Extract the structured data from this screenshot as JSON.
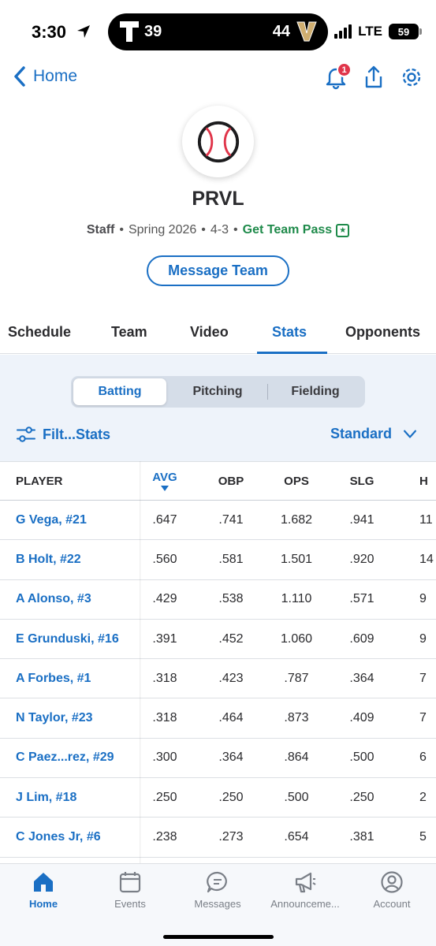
{
  "status_bar": {
    "time": "3:30",
    "score_left": "39",
    "score_right": "44",
    "network": "LTE",
    "battery": "59"
  },
  "nav": {
    "back_label": "Home",
    "notification_count": "1"
  },
  "team": {
    "name": "PRVL",
    "role": "Staff",
    "season": "Spring 2026",
    "record": "4-3",
    "pass_label": "Get Team Pass",
    "message_button": "Message Team"
  },
  "tabs": [
    "Schedule",
    "Team",
    "Video",
    "Stats",
    "Opponents"
  ],
  "active_tab": "Stats",
  "segments": [
    "Batting",
    "Pitching",
    "Fielding"
  ],
  "active_segment": "Batting",
  "filter_label": "Filt...Stats",
  "view_label": "Standard",
  "table": {
    "headers": [
      "PLAYER",
      "AVG",
      "OBP",
      "OPS",
      "SLG",
      "H"
    ],
    "rows": [
      [
        "G Vega, #21",
        ".647",
        ".741",
        "1.682",
        ".941",
        "11"
      ],
      [
        "B Holt, #22",
        ".560",
        ".581",
        "1.501",
        ".920",
        "14"
      ],
      [
        "A Alonso, #3",
        ".429",
        ".538",
        "1.110",
        ".571",
        "9"
      ],
      [
        "E Grunduski, #16",
        ".391",
        ".452",
        "1.060",
        ".609",
        "9"
      ],
      [
        "A Forbes, #1",
        ".318",
        ".423",
        ".787",
        ".364",
        "7"
      ],
      [
        "N Taylor, #23",
        ".318",
        ".464",
        ".873",
        ".409",
        "7"
      ],
      [
        "C Paez...rez, #29",
        ".300",
        ".364",
        ".864",
        ".500",
        "6"
      ],
      [
        "J Lim, #18",
        ".250",
        ".250",
        ".500",
        ".250",
        "2"
      ],
      [
        "C Jones Jr, #6",
        ".238",
        ".273",
        ".654",
        ".381",
        "5"
      ]
    ]
  },
  "bottom_tabs": [
    "Home",
    "Events",
    "Messages",
    "Announceme...",
    "Account"
  ],
  "colors": {
    "accent": "#1a6fc4",
    "pass_green": "#1e8a4a",
    "badge_red": "#e0354a"
  }
}
